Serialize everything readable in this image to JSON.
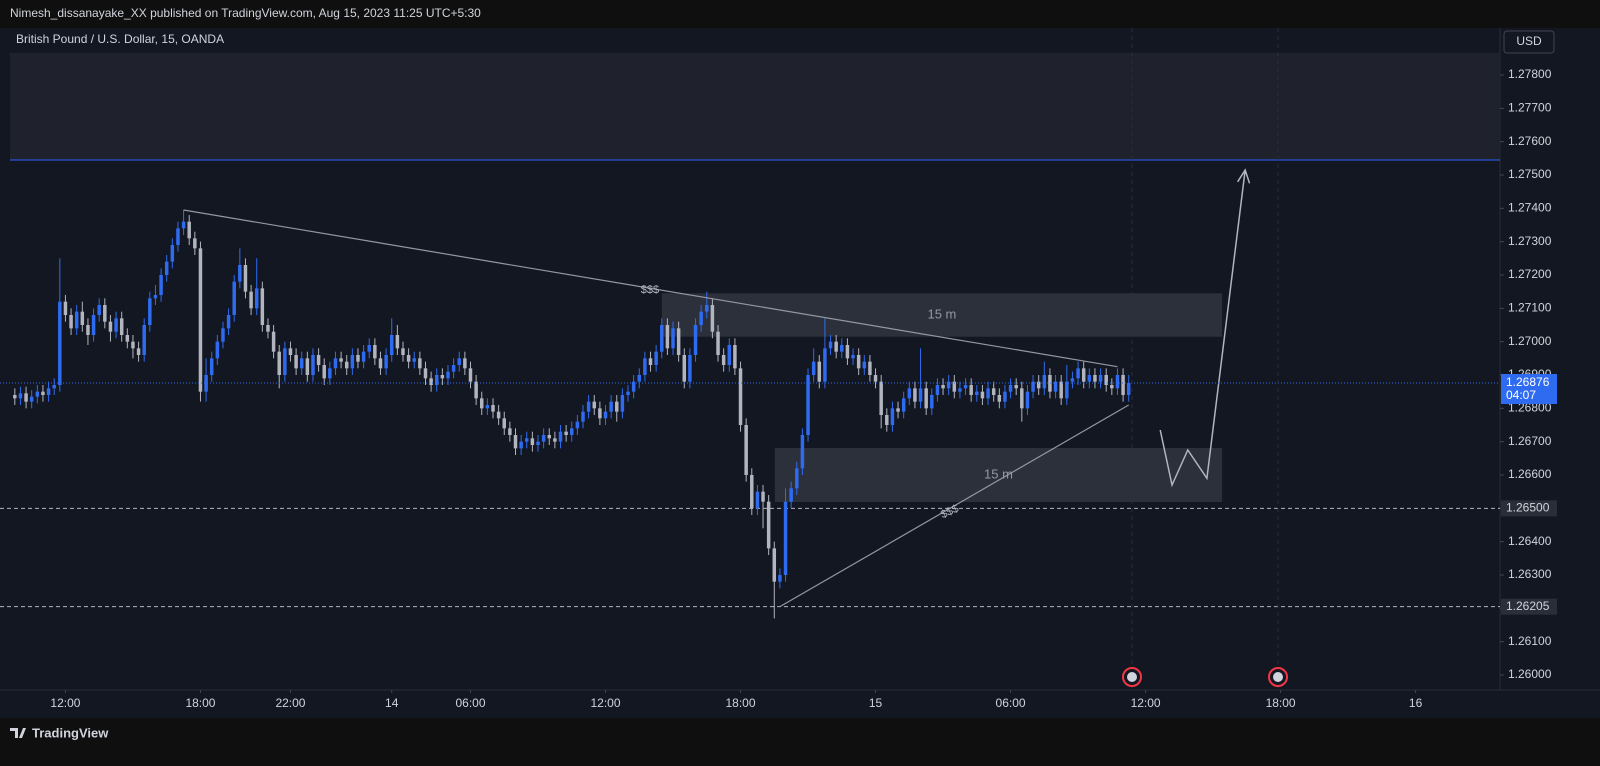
{
  "header": "Nimesh_dissanayake_XX published on TradingView.com, Aug 15, 2023 11:25 UTC+5:30",
  "footer": "TradingView",
  "chart_data": {
    "type": "candlestick",
    "title": "British Pound / U.S. Dollar, 15, OANDA",
    "currency": "USD",
    "up_color": "#2f6bf0",
    "down_color": "#b2b5be",
    "xlim": [
      -0.5,
      264
    ],
    "ylim": [
      1.25955,
      1.27941
    ],
    "xticks": [
      {
        "value": 9,
        "label": "12:00"
      },
      {
        "value": 33,
        "label": "18:00"
      },
      {
        "value": 49,
        "label": "22:00"
      },
      {
        "value": 67,
        "label": "14"
      },
      {
        "value": 81,
        "label": "06:00"
      },
      {
        "value": 105,
        "label": "12:00"
      },
      {
        "value": 129,
        "label": "18:00"
      },
      {
        "value": 153,
        "label": "15"
      },
      {
        "value": 177,
        "label": "06:00"
      },
      {
        "value": 201,
        "label": "12:00"
      },
      {
        "value": 225,
        "label": "18:00"
      },
      {
        "value": 249,
        "label": "16"
      }
    ],
    "yticks": [
      {
        "value": 1.26,
        "label": "1.26000"
      },
      {
        "value": 1.261,
        "label": "1.26100"
      },
      {
        "value": 1.262,
        "label": "1.26200"
      },
      {
        "value": 1.263,
        "label": "1.26300"
      },
      {
        "value": 1.264,
        "label": "1.26400"
      },
      {
        "value": 1.265,
        "label": "1.26500"
      },
      {
        "value": 1.266,
        "label": "1.26600"
      },
      {
        "value": 1.267,
        "label": "1.26700"
      },
      {
        "value": 1.268,
        "label": "1.26800"
      },
      {
        "value": 1.269,
        "label": "1.26900"
      },
      {
        "value": 1.27,
        "label": "1.27000"
      },
      {
        "value": 1.271,
        "label": "1.27100"
      },
      {
        "value": 1.272,
        "label": "1.27200"
      },
      {
        "value": 1.273,
        "label": "1.27300"
      },
      {
        "value": 1.274,
        "label": "1.27400"
      },
      {
        "value": 1.275,
        "label": "1.27500"
      },
      {
        "value": 1.276,
        "label": "1.27600"
      },
      {
        "value": 1.277,
        "label": "1.27700"
      },
      {
        "value": 1.278,
        "label": "1.27800"
      }
    ],
    "countdown": "04:07",
    "levels": [
      {
        "value": 1.265,
        "label": "1.26500"
      },
      {
        "value": 1.26205,
        "label": "1.26205"
      }
    ],
    "blue_level": 1.27545,
    "zones": [
      {
        "label": "15 m",
        "x": [
          115,
          214.6
        ],
        "y": [
          1.27015,
          1.27145
        ]
      },
      {
        "label": "15 m",
        "x": [
          135.1,
          214.6
        ],
        "y": [
          1.26519,
          1.26681
        ]
      }
    ],
    "trend_lines": [
      {
        "x": [
          30,
          196
        ],
        "y": [
          1.27395,
          1.26925
        ]
      },
      {
        "x": [
          136,
          198
        ],
        "y": [
          1.26205,
          1.2681
        ]
      }
    ],
    "liquidity_labels": [
      {
        "label": "$$$",
        "x": 112.9,
        "y": 1.27155
      },
      {
        "label": "$$$",
        "x": 166.2,
        "y": 1.26489
      }
    ],
    "projection": {
      "x": [
        203.6,
        205.7,
        208.5,
        211.9,
        218.7
      ],
      "y": [
        1.26735,
        1.2657,
        1.26675,
        1.2659,
        1.27515
      ]
    },
    "ohlc": [
      [
        1.2684,
        1.2686,
        1.2681,
        1.2683
      ],
      [
        1.2683,
        1.26865,
        1.2681,
        1.26845
      ],
      [
        1.26845,
        1.26865,
        1.268,
        1.2682
      ],
      [
        1.2682,
        1.26855,
        1.268,
        1.26835
      ],
      [
        1.26835,
        1.2687,
        1.26815,
        1.2685
      ],
      [
        1.2685,
        1.2687,
        1.2682,
        1.2684
      ],
      [
        1.2684,
        1.2688,
        1.2682,
        1.2686
      ],
      [
        1.2686,
        1.2689,
        1.2684,
        1.2687
      ],
      [
        1.2687,
        1.2725,
        1.2685,
        1.2712
      ],
      [
        1.2712,
        1.2714,
        1.2706,
        1.2708
      ],
      [
        1.2708,
        1.271,
        1.2702,
        1.2704
      ],
      [
        1.2704,
        1.2711,
        1.2702,
        1.2709
      ],
      [
        1.2709,
        1.2712,
        1.2703,
        1.2705
      ],
      [
        1.2705,
        1.2707,
        1.2699,
        1.2702
      ],
      [
        1.2702,
        1.271,
        1.27,
        1.2708
      ],
      [
        1.2708,
        1.2713,
        1.2706,
        1.2711
      ],
      [
        1.2711,
        1.2713,
        1.2704,
        1.2706
      ],
      [
        1.2706,
        1.2708,
        1.27,
        1.2703
      ],
      [
        1.2703,
        1.2709,
        1.2701,
        1.2707
      ],
      [
        1.2707,
        1.2709,
        1.27,
        1.2702
      ],
      [
        1.2702,
        1.2704,
        1.2698,
        1.27
      ],
      [
        1.27,
        1.2702,
        1.2695,
        1.2698
      ],
      [
        1.2698,
        1.27,
        1.2694,
        1.2696
      ],
      [
        1.2696,
        1.2707,
        1.2694,
        1.2705
      ],
      [
        1.2705,
        1.2715,
        1.2703,
        1.2713
      ],
      [
        1.2713,
        1.2717,
        1.2711,
        1.2714
      ],
      [
        1.2714,
        1.2722,
        1.2712,
        1.272
      ],
      [
        1.272,
        1.2726,
        1.2718,
        1.2724
      ],
      [
        1.2724,
        1.2731,
        1.2722,
        1.2729
      ],
      [
        1.2729,
        1.2736,
        1.2727,
        1.2734
      ],
      [
        1.2734,
        1.27395,
        1.2732,
        1.2736
      ],
      [
        1.2736,
        1.2738,
        1.2729,
        1.2731
      ],
      [
        1.2731,
        1.2733,
        1.2726,
        1.2728
      ],
      [
        1.2728,
        1.273,
        1.2682,
        1.2685
      ],
      [
        1.2685,
        1.2695,
        1.2682,
        1.269
      ],
      [
        1.269,
        1.2697,
        1.2688,
        1.2695
      ],
      [
        1.2695,
        1.2702,
        1.2693,
        1.27
      ],
      [
        1.27,
        1.2706,
        1.2698,
        1.2704
      ],
      [
        1.2704,
        1.271,
        1.2702,
        1.2708
      ],
      [
        1.2708,
        1.272,
        1.2706,
        1.2718
      ],
      [
        1.2718,
        1.2728,
        1.2716,
        1.2723
      ],
      [
        1.2723,
        1.2725,
        1.2713,
        1.2715
      ],
      [
        1.2715,
        1.2717,
        1.2708,
        1.271
      ],
      [
        1.271,
        1.2725,
        1.2708,
        1.2716
      ],
      [
        1.2716,
        1.2718,
        1.2703,
        1.2705
      ],
      [
        1.2705,
        1.2707,
        1.2701,
        1.2703
      ],
      [
        1.2703,
        1.2705,
        1.2695,
        1.2697
      ],
      [
        1.2697,
        1.2699,
        1.2686,
        1.269
      ],
      [
        1.269,
        1.27,
        1.2688,
        1.2698
      ],
      [
        1.2698,
        1.27,
        1.2694,
        1.2696
      ],
      [
        1.2696,
        1.2698,
        1.269,
        1.2692
      ],
      [
        1.2692,
        1.2697,
        1.269,
        1.2695
      ],
      [
        1.2695,
        1.2697,
        1.2688,
        1.269
      ],
      [
        1.269,
        1.2698,
        1.2688,
        1.2696
      ],
      [
        1.2696,
        1.2698,
        1.2691,
        1.2693
      ],
      [
        1.2693,
        1.2695,
        1.2687,
        1.2689
      ],
      [
        1.2689,
        1.2694,
        1.2687,
        1.2692
      ],
      [
        1.2692,
        1.2697,
        1.269,
        1.2695
      ],
      [
        1.2695,
        1.2697,
        1.2692,
        1.2694
      ],
      [
        1.2694,
        1.2696,
        1.269,
        1.2692
      ],
      [
        1.2692,
        1.2698,
        1.269,
        1.2696
      ],
      [
        1.2696,
        1.2698,
        1.2692,
        1.2694
      ],
      [
        1.2694,
        1.2699,
        1.2692,
        1.2697
      ],
      [
        1.2697,
        1.2701,
        1.2695,
        1.2699
      ],
      [
        1.2699,
        1.2701,
        1.2693,
        1.2695
      ],
      [
        1.2695,
        1.2697,
        1.269,
        1.2692
      ],
      [
        1.2692,
        1.2698,
        1.269,
        1.2696
      ],
      [
        1.2696,
        1.2707,
        1.2694,
        1.2702
      ],
      [
        1.2702,
        1.2705,
        1.2696,
        1.2698
      ],
      [
        1.2698,
        1.27,
        1.2694,
        1.2696
      ],
      [
        1.2696,
        1.2698,
        1.2692,
        1.2694
      ],
      [
        1.2694,
        1.2697,
        1.2692,
        1.2695
      ],
      [
        1.2695,
        1.2697,
        1.269,
        1.2692
      ],
      [
        1.2692,
        1.2694,
        1.2687,
        1.2689
      ],
      [
        1.2689,
        1.2691,
        1.2685,
        1.2687
      ],
      [
        1.2687,
        1.2692,
        1.2685,
        1.269
      ],
      [
        1.269,
        1.2692,
        1.2687,
        1.2689
      ],
      [
        1.2689,
        1.2693,
        1.2687,
        1.2691
      ],
      [
        1.2691,
        1.2695,
        1.2689,
        1.2693
      ],
      [
        1.2693,
        1.2697,
        1.2691,
        1.2695
      ],
      [
        1.2695,
        1.2697,
        1.269,
        1.2692
      ],
      [
        1.2692,
        1.2694,
        1.2686,
        1.2688
      ],
      [
        1.2688,
        1.269,
        1.2681,
        1.2683
      ],
      [
        1.2683,
        1.2685,
        1.2678,
        1.268
      ],
      [
        1.268,
        1.2683,
        1.2678,
        1.2681
      ],
      [
        1.2681,
        1.2683,
        1.2677,
        1.2679
      ],
      [
        1.2679,
        1.2681,
        1.2675,
        1.2677
      ],
      [
        1.2677,
        1.2679,
        1.2672,
        1.2674
      ],
      [
        1.2674,
        1.2676,
        1.267,
        1.2672
      ],
      [
        1.2672,
        1.2674,
        1.2666,
        1.2668
      ],
      [
        1.2668,
        1.2672,
        1.2666,
        1.267
      ],
      [
        1.267,
        1.2673,
        1.2668,
        1.2671
      ],
      [
        1.2671,
        1.2673,
        1.2667,
        1.2669
      ],
      [
        1.2669,
        1.2672,
        1.2667,
        1.267
      ],
      [
        1.267,
        1.2674,
        1.2668,
        1.2672
      ],
      [
        1.2672,
        1.2674,
        1.2669,
        1.2671
      ],
      [
        1.2671,
        1.2673,
        1.2668,
        1.267
      ],
      [
        1.267,
        1.2675,
        1.2668,
        1.2673
      ],
      [
        1.2673,
        1.2675,
        1.267,
        1.2672
      ],
      [
        1.2672,
        1.2676,
        1.267,
        1.2674
      ],
      [
        1.2674,
        1.2678,
        1.2672,
        1.2676
      ],
      [
        1.2676,
        1.2681,
        1.2674,
        1.2679
      ],
      [
        1.2679,
        1.2684,
        1.2677,
        1.2682
      ],
      [
        1.2682,
        1.2684,
        1.2678,
        1.268
      ],
      [
        1.268,
        1.2682,
        1.2675,
        1.2677
      ],
      [
        1.2677,
        1.2681,
        1.2675,
        1.2679
      ],
      [
        1.2679,
        1.2684,
        1.2677,
        1.2682
      ],
      [
        1.2682,
        1.2684,
        1.2676,
        1.2679
      ],
      [
        1.2679,
        1.2686,
        1.2677,
        1.2684
      ],
      [
        1.2684,
        1.2687,
        1.2682,
        1.2685
      ],
      [
        1.2685,
        1.269,
        1.2683,
        1.2688
      ],
      [
        1.2688,
        1.2692,
        1.2686,
        1.269
      ],
      [
        1.269,
        1.2697,
        1.2688,
        1.2695
      ],
      [
        1.2695,
        1.2697,
        1.2691,
        1.2693
      ],
      [
        1.2693,
        1.2699,
        1.2691,
        1.2697
      ],
      [
        1.2697,
        1.2707,
        1.2695,
        1.2705
      ],
      [
        1.2705,
        1.2707,
        1.2696,
        1.2698
      ],
      [
        1.2698,
        1.2706,
        1.2696,
        1.2704
      ],
      [
        1.2704,
        1.2706,
        1.2694,
        1.2696
      ],
      [
        1.2696,
        1.2698,
        1.2686,
        1.2688
      ],
      [
        1.2688,
        1.2698,
        1.2686,
        1.2696
      ],
      [
        1.2696,
        1.2707,
        1.2694,
        1.2705
      ],
      [
        1.2705,
        1.2711,
        1.2703,
        1.2709
      ],
      [
        1.2709,
        1.2715,
        1.2707,
        1.2711
      ],
      [
        1.2711,
        1.2713,
        1.2701,
        1.2703
      ],
      [
        1.2703,
        1.2705,
        1.2694,
        1.2696
      ],
      [
        1.2696,
        1.2698,
        1.2691,
        1.2693
      ],
      [
        1.2693,
        1.2701,
        1.2691,
        1.2699
      ],
      [
        1.2699,
        1.2701,
        1.269,
        1.2692
      ],
      [
        1.2692,
        1.2694,
        1.2673,
        1.2675
      ],
      [
        1.2675,
        1.2677,
        1.2658,
        1.266
      ],
      [
        1.266,
        1.2662,
        1.2648,
        1.265
      ],
      [
        1.265,
        1.2657,
        1.2648,
        1.2655
      ],
      [
        1.2655,
        1.2657,
        1.2644,
        1.2652
      ],
      [
        1.2652,
        1.2654,
        1.2636,
        1.2638
      ],
      [
        1.2638,
        1.264,
        1.2617,
        1.2628
      ],
      [
        1.2628,
        1.2632,
        1.2626,
        1.263
      ],
      [
        1.263,
        1.2656,
        1.2628,
        1.2652
      ],
      [
        1.2652,
        1.2658,
        1.265,
        1.2656
      ],
      [
        1.2656,
        1.2664,
        1.2654,
        1.2662
      ],
      [
        1.2662,
        1.2674,
        1.266,
        1.2672
      ],
      [
        1.2672,
        1.2692,
        1.267,
        1.269
      ],
      [
        1.269,
        1.2698,
        1.2688,
        1.2694
      ],
      [
        1.2694,
        1.2696,
        1.2686,
        1.2688
      ],
      [
        1.2688,
        1.2707,
        1.2686,
        1.2698
      ],
      [
        1.2698,
        1.2702,
        1.2696,
        1.27
      ],
      [
        1.27,
        1.2702,
        1.2695,
        1.2697
      ],
      [
        1.2697,
        1.2701,
        1.2695,
        1.2699
      ],
      [
        1.2699,
        1.2701,
        1.2693,
        1.2695
      ],
      [
        1.2695,
        1.2698,
        1.2693,
        1.2696
      ],
      [
        1.2696,
        1.2698,
        1.269,
        1.2692
      ],
      [
        1.2692,
        1.2696,
        1.269,
        1.2694
      ],
      [
        1.2694,
        1.2696,
        1.2688,
        1.269
      ],
      [
        1.269,
        1.2692,
        1.2686,
        1.2688
      ],
      [
        1.2688,
        1.269,
        1.2674,
        1.2678
      ],
      [
        1.2678,
        1.268,
        1.2673,
        1.2675
      ],
      [
        1.2675,
        1.2682,
        1.2673,
        1.268
      ],
      [
        1.268,
        1.2682,
        1.2677,
        1.2679
      ],
      [
        1.2679,
        1.2685,
        1.2677,
        1.2683
      ],
      [
        1.2683,
        1.2688,
        1.2681,
        1.2686
      ],
      [
        1.2686,
        1.2688,
        1.268,
        1.2682
      ],
      [
        1.2682,
        1.2698,
        1.268,
        1.2686
      ],
      [
        1.2686,
        1.2688,
        1.2678,
        1.268
      ],
      [
        1.268,
        1.2686,
        1.2678,
        1.2684
      ],
      [
        1.2684,
        1.2689,
        1.2682,
        1.2687
      ],
      [
        1.2687,
        1.2689,
        1.2684,
        1.2686
      ],
      [
        1.2686,
        1.269,
        1.2684,
        1.2688
      ],
      [
        1.2688,
        1.269,
        1.2683,
        1.2685
      ],
      [
        1.2685,
        1.2688,
        1.2683,
        1.2686
      ],
      [
        1.2686,
        1.2689,
        1.2684,
        1.2687
      ],
      [
        1.2687,
        1.2689,
        1.2682,
        1.2684
      ],
      [
        1.2684,
        1.2687,
        1.2682,
        1.2685
      ],
      [
        1.2685,
        1.2687,
        1.2681,
        1.2683
      ],
      [
        1.2683,
        1.2688,
        1.2681,
        1.2686
      ],
      [
        1.2686,
        1.2688,
        1.2682,
        1.2684
      ],
      [
        1.2684,
        1.2686,
        1.268,
        1.2682
      ],
      [
        1.2682,
        1.2687,
        1.268,
        1.2685
      ],
      [
        1.2685,
        1.2689,
        1.2683,
        1.2687
      ],
      [
        1.2687,
        1.2689,
        1.2684,
        1.2686
      ],
      [
        1.2686,
        1.2688,
        1.2676,
        1.268
      ],
      [
        1.268,
        1.2687,
        1.2678,
        1.2685
      ],
      [
        1.2685,
        1.269,
        1.2683,
        1.2688
      ],
      [
        1.2688,
        1.269,
        1.2684,
        1.2686
      ],
      [
        1.2686,
        1.2694,
        1.2684,
        1.269
      ],
      [
        1.269,
        1.2692,
        1.2683,
        1.2685
      ],
      [
        1.2685,
        1.269,
        1.2683,
        1.2688
      ],
      [
        1.2688,
        1.269,
        1.2681,
        1.2683
      ],
      [
        1.2683,
        1.2693,
        1.2681,
        1.2688
      ],
      [
        1.2688,
        1.2691,
        1.2686,
        1.2689
      ],
      [
        1.2689,
        1.2694,
        1.2687,
        1.2692
      ],
      [
        1.2692,
        1.2694,
        1.2686,
        1.2688
      ],
      [
        1.2688,
        1.2692,
        1.2686,
        1.269
      ],
      [
        1.269,
        1.2692,
        1.2686,
        1.2688
      ],
      [
        1.2688,
        1.2692,
        1.2686,
        1.269
      ],
      [
        1.269,
        1.2692,
        1.2685,
        1.2687
      ],
      [
        1.2687,
        1.2689,
        1.2684,
        1.2686
      ],
      [
        1.2686,
        1.2692,
        1.2684,
        1.269
      ],
      [
        1.269,
        1.2692,
        1.2682,
        1.2684
      ],
      [
        1.2684,
        1.269,
        1.2682,
        1.26876
      ]
    ]
  }
}
